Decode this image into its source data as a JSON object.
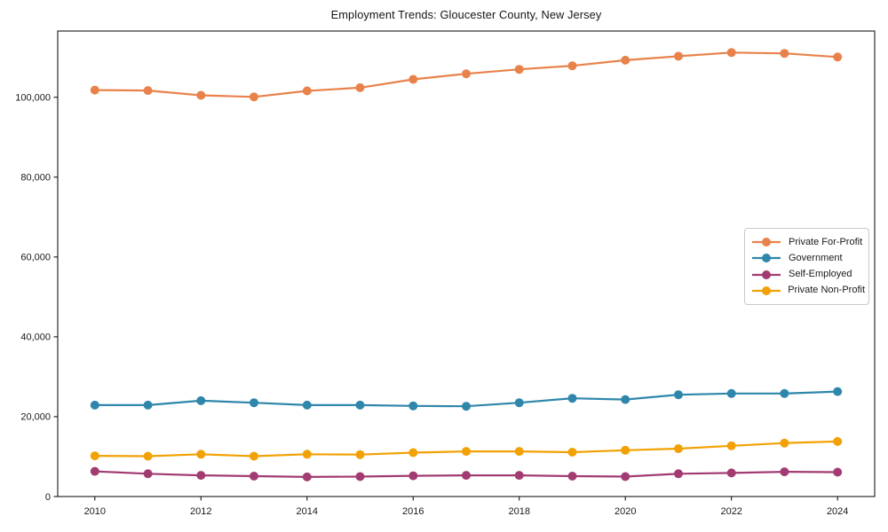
{
  "figure": {
    "title": "Employment Trends: Gloucester County, New Jersey"
  },
  "chart_data": {
    "type": "line",
    "title": "Employment Trends: Gloucester County, New Jersey",
    "xlabel": "",
    "ylabel": "",
    "x": [
      2010,
      2011,
      2012,
      2013,
      2014,
      2015,
      2016,
      2017,
      2018,
      2019,
      2020,
      2021,
      2022,
      2023,
      2024
    ],
    "series": [
      {
        "name": "Private For-Profit",
        "color": "#E8824A",
        "values": [
          101800,
          101700,
          100500,
          100100,
          101600,
          102400,
          104500,
          105900,
          107000,
          107900,
          109300,
          110300,
          111200,
          111000,
          110100
        ]
      },
      {
        "name": "Government",
        "color": "#2E86AB",
        "values": [
          22900,
          22900,
          24000,
          23500,
          22900,
          22900,
          22700,
          22600,
          23500,
          24600,
          24300,
          25500,
          25800,
          25800,
          26300
        ]
      },
      {
        "name": "Self-Employed",
        "color": "#A23B72",
        "values": [
          6300,
          5700,
          5300,
          5100,
          4900,
          5000,
          5200,
          5300,
          5300,
          5100,
          5000,
          5700,
          5900,
          6200,
          6100
        ]
      },
      {
        "name": "Private Non-Profit",
        "color": "#F2A104",
        "values": [
          10200,
          10100,
          10600,
          10100,
          10600,
          10500,
          11000,
          11300,
          11300,
          11100,
          11600,
          12000,
          12700,
          13400,
          13800
        ]
      }
    ],
    "xticks": [
      2010,
      2012,
      2014,
      2016,
      2018,
      2020,
      2022,
      2024
    ],
    "yticks": [
      0,
      20000,
      40000,
      60000,
      80000,
      100000
    ],
    "ytick_labels": [
      "0",
      "20,000",
      "40,000",
      "60,000",
      "80,000",
      "100,000"
    ],
    "xlim": [
      2009.3,
      2024.7
    ],
    "ylim": [
      0,
      116600
    ],
    "grid": false,
    "legend_position": "center right",
    "marker": "circle",
    "axis_color": "#000000"
  }
}
